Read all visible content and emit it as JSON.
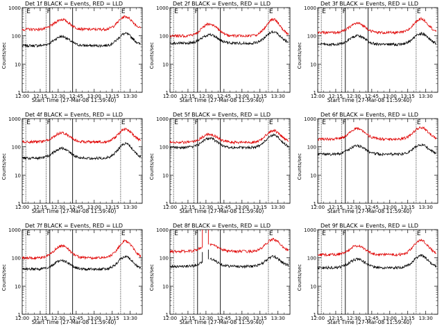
{
  "title_template": "BLACK = Events, RED = LLD",
  "xlabel": "Start Time (27-Mar-08 11:59:40)",
  "ylabel": "Counts/sec",
  "colors": {
    "events": "#000000",
    "lld": "#e00000",
    "axis": "#000000"
  },
  "chart_data": [
    {
      "type": "line",
      "title": "Det 1f BLACK = Events, RED = LLD",
      "detector": "1f",
      "xlabel": "Start Time (27-Mar-08 11:59:40)",
      "ylabel": "Counts/sec",
      "ylog": true,
      "ylim": [
        1,
        1000
      ],
      "xlim_min": [
        0,
        100
      ],
      "xticks": [
        "12:00",
        "12:15",
        "12:30",
        "12:45",
        "13:00",
        "13:15",
        "13:30"
      ],
      "yticks": [
        "1",
        "10",
        "100",
        "1000"
      ],
      "markers": [
        {
          "label": "E",
          "x": 3,
          "style": "dotted"
        },
        {
          "label": "F",
          "x": 20,
          "style": "dotted"
        },
        {
          "label": "",
          "x": 23,
          "style": "solid"
        },
        {
          "label": "",
          "x": 42,
          "style": "solid"
        },
        {
          "label": "E",
          "x": 82,
          "style": "dotted"
        }
      ],
      "series": [
        {
          "name": "Events",
          "color": "#000000",
          "base": 45,
          "p1": 95,
          "p2": 120
        },
        {
          "name": "LLD",
          "color": "#e00000",
          "base": 170,
          "p1": 380,
          "p2": 480
        }
      ]
    },
    {
      "type": "line",
      "title": "Det 2f BLACK = Events, RED = LLD",
      "detector": "2f",
      "xlabel": "Start Time (27-Mar-08 11:59:40)",
      "ylabel": "Counts/sec",
      "ylog": true,
      "ylim": [
        1,
        1000
      ],
      "xlim_min": [
        0,
        100
      ],
      "xticks": [
        "12:00",
        "12:15",
        "12:30",
        "12:45",
        "13:00",
        "13:15",
        "13:30"
      ],
      "yticks": [
        "1",
        "10",
        "100",
        "1000"
      ],
      "markers": [
        {
          "label": "E",
          "x": 3,
          "style": "dotted"
        },
        {
          "label": "F",
          "x": 20,
          "style": "dotted"
        },
        {
          "label": "",
          "x": 23,
          "style": "solid"
        },
        {
          "label": "",
          "x": 42,
          "style": "solid"
        },
        {
          "label": "E",
          "x": 82,
          "style": "dotted"
        }
      ],
      "series": [
        {
          "name": "Events",
          "color": "#000000",
          "base": 55,
          "p1": 110,
          "p2": 140
        },
        {
          "name": "LLD",
          "color": "#e00000",
          "base": 100,
          "p1": 270,
          "p2": 380
        }
      ]
    },
    {
      "type": "line",
      "title": "Det 3f BLACK = Events, RED = LLD",
      "detector": "3f",
      "xlabel": "Start Time (27-Mar-08 11:59:40)",
      "ylabel": "Counts/sec",
      "ylog": true,
      "ylim": [
        1,
        1000
      ],
      "xlim_min": [
        0,
        100
      ],
      "xticks": [
        "12:00",
        "12:15",
        "12:30",
        "12:45",
        "13:00",
        "13:15",
        "13:30"
      ],
      "yticks": [
        "1",
        "10",
        "100",
        "1000"
      ],
      "markers": [
        {
          "label": "E",
          "x": 3,
          "style": "dotted"
        },
        {
          "label": "F",
          "x": 20,
          "style": "dotted"
        },
        {
          "label": "",
          "x": 23,
          "style": "solid"
        },
        {
          "label": "",
          "x": 42,
          "style": "solid"
        },
        {
          "label": "E",
          "x": 82,
          "style": "dotted"
        }
      ],
      "series": [
        {
          "name": "Events",
          "color": "#000000",
          "base": 50,
          "p1": 100,
          "p2": 120
        },
        {
          "name": "LLD",
          "color": "#e00000",
          "base": 130,
          "p1": 280,
          "p2": 400
        }
      ]
    },
    {
      "type": "line",
      "title": "Det 4f BLACK = Events, RED = LLD",
      "detector": "4f",
      "xlabel": "Start Time (27-Mar-08 11:59:40)",
      "ylabel": "Counts/sec",
      "ylog": true,
      "ylim": [
        1,
        1000
      ],
      "xlim_min": [
        0,
        100
      ],
      "xticks": [
        "12:00",
        "12:15",
        "12:30",
        "12:45",
        "13:00",
        "13:15",
        "13:30"
      ],
      "yticks": [
        "1",
        "10",
        "100",
        "1000"
      ],
      "markers": [
        {
          "label": "E",
          "x": 3,
          "style": "dotted"
        },
        {
          "label": "F",
          "x": 20,
          "style": "dotted"
        },
        {
          "label": "",
          "x": 23,
          "style": "solid"
        },
        {
          "label": "",
          "x": 42,
          "style": "solid"
        },
        {
          "label": "E",
          "x": 82,
          "style": "dotted"
        }
      ],
      "series": [
        {
          "name": "Events",
          "color": "#000000",
          "base": 40,
          "p1": 90,
          "p2": 130
        },
        {
          "name": "LLD",
          "color": "#e00000",
          "base": 150,
          "p1": 320,
          "p2": 420
        }
      ]
    },
    {
      "type": "line",
      "title": "Det 5f BLACK = Events, RED = LLD",
      "detector": "5f",
      "xlabel": "Start Time (27-Mar-08 11:59:40)",
      "ylabel": "Counts/sec",
      "ylog": true,
      "ylim": [
        1,
        1000
      ],
      "xlim_min": [
        0,
        100
      ],
      "xticks": [
        "12:00",
        "12:15",
        "12:30",
        "12:45",
        "13:00",
        "13:15",
        "13:30"
      ],
      "yticks": [
        "1",
        "10",
        "100",
        "1000"
      ],
      "markers": [
        {
          "label": "E",
          "x": 3,
          "style": "dotted"
        },
        {
          "label": "F",
          "x": 20,
          "style": "dotted"
        },
        {
          "label": "",
          "x": 23,
          "style": "solid"
        },
        {
          "label": "",
          "x": 42,
          "style": "solid"
        },
        {
          "label": "E",
          "x": 82,
          "style": "dotted"
        }
      ],
      "series": [
        {
          "name": "Events",
          "color": "#000000",
          "base": 95,
          "p1": 200,
          "p2": 260
        },
        {
          "name": "LLD",
          "color": "#e00000",
          "base": 145,
          "p1": 280,
          "p2": 380
        }
      ]
    },
    {
      "type": "line",
      "title": "Det 6f BLACK = Events, RED = LLD",
      "detector": "6f",
      "xlabel": "Start Time (27-Mar-08 11:59:40)",
      "ylabel": "Counts/sec",
      "ylog": true,
      "ylim": [
        1,
        1000
      ],
      "xlim_min": [
        0,
        100
      ],
      "xticks": [
        "12:00",
        "12:15",
        "12:30",
        "12:45",
        "13:00",
        "13:15",
        "13:30"
      ],
      "yticks": [
        "1",
        "10",
        "100",
        "1000"
      ],
      "markers": [
        {
          "label": "E",
          "x": 3,
          "style": "dotted"
        },
        {
          "label": "F",
          "x": 20,
          "style": "dotted"
        },
        {
          "label": "",
          "x": 23,
          "style": "solid"
        },
        {
          "label": "",
          "x": 42,
          "style": "solid"
        },
        {
          "label": "E",
          "x": 82,
          "style": "dotted"
        }
      ],
      "series": [
        {
          "name": "Events",
          "color": "#000000",
          "base": 55,
          "p1": 110,
          "p2": 120
        },
        {
          "name": "LLD",
          "color": "#e00000",
          "base": 190,
          "p1": 450,
          "p2": 480
        }
      ]
    },
    {
      "type": "line",
      "title": "Det 7f BLACK = Events, RED = LLD",
      "detector": "7f",
      "xlabel": "Start Time (27-Mar-08 11:59:40)",
      "ylabel": "Counts/sec",
      "ylog": true,
      "ylim": [
        1,
        1000
      ],
      "xlim_min": [
        0,
        100
      ],
      "xticks": [
        "12:00",
        "12:15",
        "12:30",
        "12:45",
        "13:00",
        "13:15",
        "13:30"
      ],
      "yticks": [
        "1",
        "10",
        "100",
        "1000"
      ],
      "markers": [
        {
          "label": "E",
          "x": 3,
          "style": "dotted"
        },
        {
          "label": "F",
          "x": 20,
          "style": "dotted"
        },
        {
          "label": "",
          "x": 23,
          "style": "solid"
        },
        {
          "label": "",
          "x": 42,
          "style": "solid"
        },
        {
          "label": "E",
          "x": 82,
          "style": "dotted"
        }
      ],
      "series": [
        {
          "name": "Events",
          "color": "#000000",
          "base": 40,
          "p1": 80,
          "p2": 110
        },
        {
          "name": "LLD",
          "color": "#e00000",
          "base": 100,
          "p1": 270,
          "p2": 400
        }
      ]
    },
    {
      "type": "line",
      "title": "Det 8f BLACK = Events, RED = LLD",
      "detector": "8f",
      "xlabel": "Start Time (27-Mar-08 11:59:40)",
      "ylabel": "Counts/sec",
      "ylog": true,
      "ylim": [
        1,
        1000
      ],
      "xlim_min": [
        0,
        100
      ],
      "xticks": [
        "12:00",
        "12:15",
        "12:30",
        "12:45",
        "13:00",
        "13:15",
        "13:30"
      ],
      "yticks": [
        "1",
        "10",
        "100",
        "1000"
      ],
      "markers": [
        {
          "label": "E",
          "x": 3,
          "style": "dotted"
        },
        {
          "label": "F",
          "x": 20,
          "style": "dotted"
        },
        {
          "label": "",
          "x": 23,
          "style": "solid"
        },
        {
          "label": "",
          "x": 42,
          "style": "solid"
        },
        {
          "label": "E",
          "x": 82,
          "style": "dotted"
        }
      ],
      "gap": [
        27,
        33
      ],
      "spikes": [
        {
          "x": 27,
          "to": 1000
        },
        {
          "x": 32,
          "to": 1000
        }
      ],
      "series": [
        {
          "name": "Events",
          "color": "#000000",
          "base": 50,
          "p1": 90,
          "p2": 110
        },
        {
          "name": "LLD",
          "color": "#e00000",
          "base": 170,
          "p1": 300,
          "p2": 450
        }
      ]
    },
    {
      "type": "line",
      "title": "Det 9f BLACK = Events, RED = LLD",
      "detector": "9f",
      "xlabel": "Start Time (27-Mar-08 11:59:40)",
      "ylabel": "Counts/sec",
      "ylog": true,
      "ylim": [
        1,
        1000
      ],
      "xlim_min": [
        0,
        100
      ],
      "xticks": [
        "12:00",
        "12:15",
        "12:30",
        "12:45",
        "13:00",
        "13:15",
        "13:30"
      ],
      "yticks": [
        "1",
        "10",
        "100",
        "1000"
      ],
      "markers": [
        {
          "label": "E",
          "x": 3,
          "style": "dotted"
        },
        {
          "label": "F",
          "x": 20,
          "style": "dotted"
        },
        {
          "label": "",
          "x": 23,
          "style": "solid"
        },
        {
          "label": "",
          "x": 42,
          "style": "solid"
        },
        {
          "label": "E",
          "x": 82,
          "style": "dotted"
        }
      ],
      "series": [
        {
          "name": "Events",
          "color": "#000000",
          "base": 45,
          "p1": 90,
          "p2": 120
        },
        {
          "name": "LLD",
          "color": "#e00000",
          "base": 130,
          "p1": 270,
          "p2": 420
        }
      ]
    }
  ]
}
